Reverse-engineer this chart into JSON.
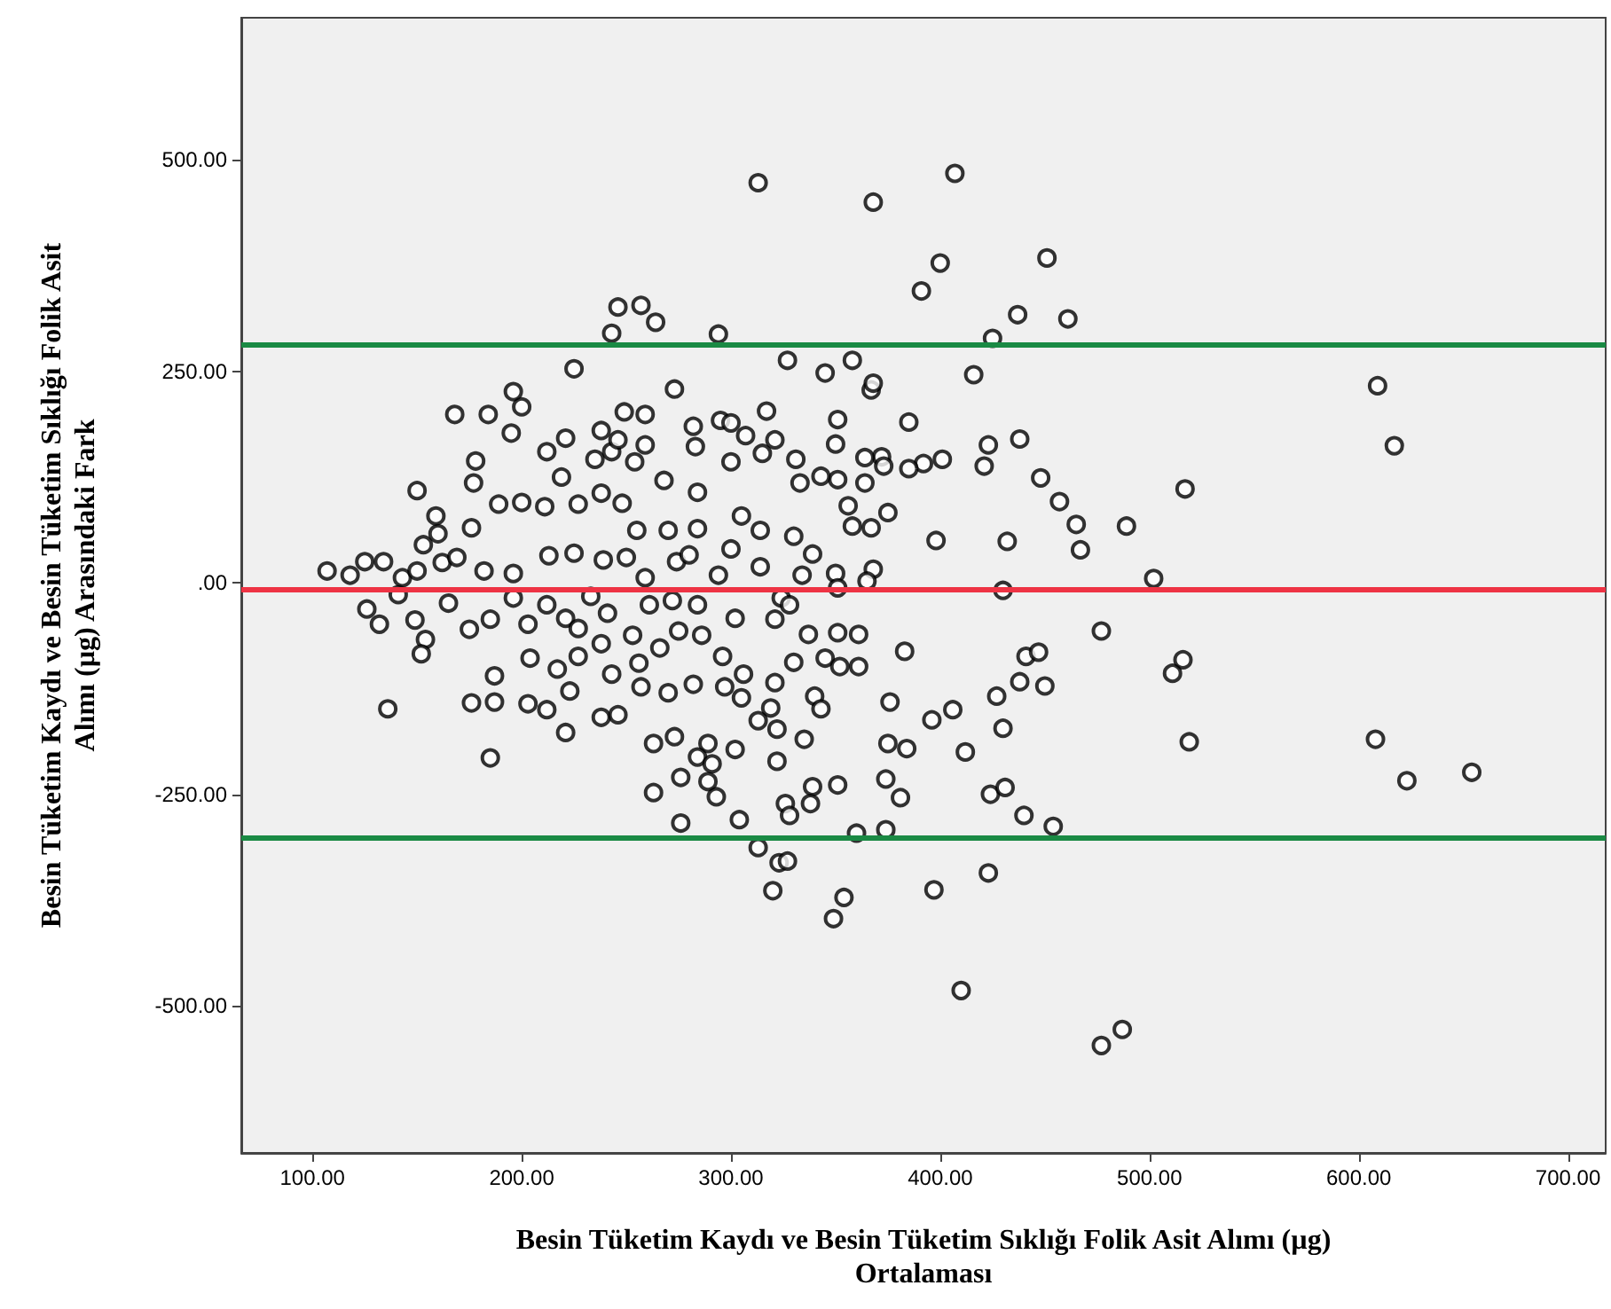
{
  "chart_data": {
    "type": "scatter",
    "xlabel": "Besin Tüketim Kaydı ve Besin Tüketim Sıklığı Folik Asit Alımı (µg)\nOrtalaması",
    "ylabel": "Besin Tüketim Kaydı ve Besin Tüketim Sıklığı Folik Asit\nAlımı (µg) Arasındaki Fark",
    "xlim": [
      66,
      718
    ],
    "ylim": [
      -674,
      668
    ],
    "xticks": [
      {
        "value": 100,
        "label": "100.00"
      },
      {
        "value": 200,
        "label": "200.00"
      },
      {
        "value": 300,
        "label": "300.00"
      },
      {
        "value": 400,
        "label": "400.00"
      },
      {
        "value": 500,
        "label": "500.00"
      },
      {
        "value": 600,
        "label": "600.00"
      },
      {
        "value": 700,
        "label": "700.00"
      }
    ],
    "yticks": [
      {
        "value": -500,
        "label": "-500.00"
      },
      {
        "value": -250,
        "label": "-250.00"
      },
      {
        "value": 0,
        "label": ".00"
      },
      {
        "value": 250,
        "label": "250.00"
      },
      {
        "value": 500,
        "label": "500.00"
      }
    ],
    "grid": false,
    "marker": "circle",
    "ref_lines": [
      {
        "axis": "y",
        "value": 282,
        "color": "#1a8a44"
      },
      {
        "axis": "y",
        "value": -8,
        "color": "#ee3344"
      },
      {
        "axis": "y",
        "value": -301,
        "color": "#1a8a44"
      }
    ],
    "series": [
      {
        "color": "#000000",
        "x": [
          313,
          368,
          407,
          400,
          391,
          451,
          437,
          461,
          425,
          416,
          246,
          257,
          264,
          243,
          294,
          225,
          327,
          345,
          358,
          367,
          368,
          273,
          196,
          200,
          168,
          184,
          195,
          249,
          259,
          282,
          295,
          300,
          317,
          351,
          385,
          609,
          617,
          517,
          489,
          465,
          467,
          448,
          457,
          438,
          423,
          421,
          401,
          392,
          385,
          372,
          373,
          364,
          364,
          350,
          351,
          343,
          333,
          331,
          321,
          315,
          300,
          307,
          283,
          284,
          268,
          259,
          254,
          243,
          246,
          238,
          221,
          212,
          235,
          219,
          178,
          177,
          150,
          159,
          160,
          153,
          162,
          176,
          189,
          200,
          211,
          227,
          238,
          248,
          255,
          270,
          284,
          305,
          314,
          330,
          339,
          356,
          358,
          367,
          375,
          398,
          432,
          107,
          118,
          125,
          134,
          143,
          150,
          169,
          182,
          196,
          213,
          225,
          239,
          250,
          259,
          274,
          280,
          294,
          300,
          314,
          334,
          350,
          368,
          365,
          502,
          430,
          351,
          126,
          132,
          141,
          149,
          154,
          152,
          165,
          175,
          185,
          196,
          203,
          212,
          221,
          227,
          233,
          241,
          253,
          261,
          272,
          284,
          286,
          302,
          324,
          328,
          337,
          351,
          361,
          321,
          187,
          204,
          217,
          227,
          238,
          243,
          256,
          266,
          275,
          296,
          306,
          330,
          345,
          352,
          361,
          383,
          441,
          447,
          438,
          450,
          477,
          516,
          511,
          136,
          176,
          187,
          203,
          212,
          223,
          238,
          246,
          257,
          270,
          282,
          297,
          305,
          321,
          319,
          340,
          343,
          221,
          263,
          273,
          289,
          302,
          313,
          322,
          335,
          376,
          396,
          406,
          427,
          430,
          519,
          608,
          623,
          654,
          185,
          276,
          284,
          291,
          289,
          322,
          375,
          384,
          412,
          263,
          276,
          293,
          304,
          326,
          328,
          339,
          351,
          338,
          374,
          381,
          424,
          431,
          440,
          454,
          360,
          374,
          313,
          323,
          327,
          320,
          354,
          349,
          397,
          423,
          410,
          477,
          487
        ],
        "values": [
          473,
          450,
          484,
          378,
          345,
          384,
          317,
          312,
          289,
          246,
          326,
          328,
          308,
          295,
          294,
          253,
          263,
          248,
          263,
          228,
          236,
          229,
          226,
          208,
          199,
          199,
          177,
          202,
          199,
          185,
          192,
          189,
          203,
          193,
          190,
          233,
          162,
          111,
          67,
          69,
          39,
          124,
          96,
          170,
          163,
          138,
          146,
          141,
          135,
          149,
          138,
          148,
          118,
          164,
          122,
          126,
          118,
          146,
          169,
          153,
          143,
          174,
          161,
          107,
          121,
          163,
          143,
          155,
          169,
          180,
          171,
          155,
          146,
          125,
          144,
          118,
          109,
          79,
          58,
          45,
          24,
          65,
          93,
          95,
          90,
          93,
          106,
          94,
          62,
          62,
          64,
          79,
          62,
          55,
          34,
          91,
          67,
          65,
          83,
          50,
          49,
          14,
          9,
          25,
          25,
          6,
          14,
          30,
          14,
          11,
          32,
          35,
          27,
          30,
          6,
          25,
          33,
          9,
          40,
          19,
          9,
          11,
          16,
          2,
          5,
          -9,
          -6,
          -31,
          -49,
          -14,
          -44,
          -67,
          -84,
          -24,
          -55,
          -43,
          -18,
          -49,
          -26,
          -42,
          -54,
          -16,
          -36,
          -62,
          -26,
          -21,
          -26,
          -62,
          -42,
          -18,
          -26,
          -61,
          -59,
          -61,
          -43,
          -110,
          -89,
          -102,
          -87,
          -72,
          -108,
          -95,
          -77,
          -57,
          -87,
          -108,
          -94,
          -89,
          -99,
          -99,
          -81,
          -87,
          -82,
          -117,
          -122,
          -57,
          -91,
          -107,
          -149,
          -142,
          -141,
          -143,
          -150,
          -128,
          -159,
          -156,
          -123,
          -130,
          -120,
          -123,
          -136,
          -118,
          -148,
          -134,
          -149,
          -177,
          -190,
          -182,
          -190,
          -197,
          -163,
          -173,
          -185,
          -141,
          -162,
          -150,
          -134,
          -172,
          -188,
          -185,
          -234,
          -224,
          -207,
          -230,
          -206,
          -214,
          -235,
          -211,
          -190,
          -196,
          -200,
          -248,
          -284,
          -253,
          -280,
          -261,
          -275,
          -241,
          -239,
          -261,
          -232,
          -254,
          -250,
          -242,
          -275,
          -288,
          -296,
          -292,
          -313,
          -331,
          -329,
          -364,
          -372,
          -397,
          -363,
          -343,
          -482,
          -547,
          -528
        ]
      }
    ]
  }
}
